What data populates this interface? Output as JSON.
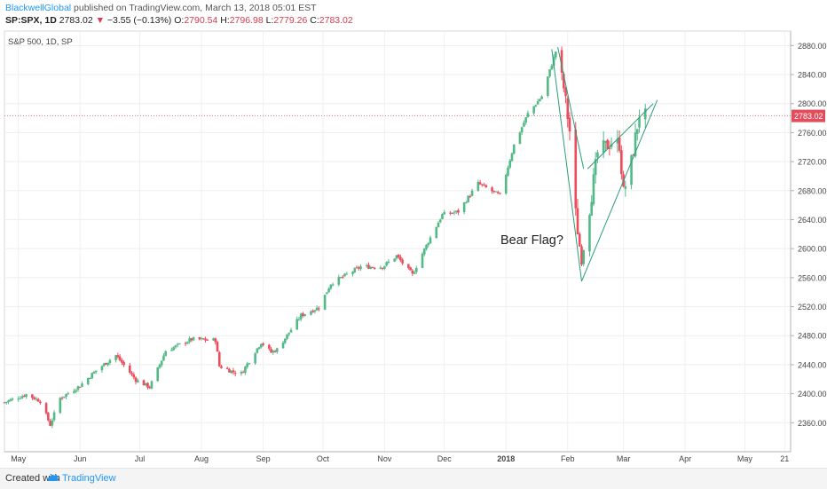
{
  "header": {
    "author": "BlackwellGlobal",
    "published": " published on TradingView.com, March 13, 2018 05:01 EST",
    "symbol": "SP:SPX, 1D",
    "last": "2783.02",
    "change_arrow": "▼",
    "change": "−3.55 (−0.13%)",
    "open_label": "O:",
    "open": "2790.54",
    "high_label": "H:",
    "high": "2796.98",
    "low_label": "L:",
    "low": "2779.26",
    "close_label": "C:",
    "close": "2783.02"
  },
  "chart_data": {
    "type": "candlestick",
    "title": "S&P 500, 1D, SP",
    "ylim": [
      2320,
      2900
    ],
    "y_ticks": [
      2360,
      2400,
      2440,
      2480,
      2520,
      2560,
      2600,
      2640,
      2680,
      2720,
      2760,
      2800,
      2840,
      2880
    ],
    "y_tick_labels": [
      "2360.00",
      "2400.00",
      "2440.00",
      "2480.00",
      "2520.00",
      "2560.00",
      "2600.00",
      "2640.00",
      "2680.00",
      "2720.00",
      "2760.00",
      "2800.00",
      "2840.00",
      "2880.00"
    ],
    "x_tick_labels": [
      "May",
      "Jun",
      "Jul",
      "Aug",
      "Sep",
      "Oct",
      "Nov",
      "Dec",
      "2018",
      "Feb",
      "Mar",
      "Apr",
      "May",
      "21"
    ],
    "x_tick_dates": [
      "2017-05-01",
      "2017-06-01",
      "2017-07-01",
      "2017-08-01",
      "2017-09-01",
      "2017-10-01",
      "2017-11-01",
      "2017-12-01",
      "2018-01-01",
      "2018-02-01",
      "2018-03-01",
      "2018-04-01",
      "2018-05-01",
      "2018-05-21"
    ],
    "x_start": "2017-04-24",
    "x_end": "2018-05-24",
    "last_price": 2783.02,
    "last_price_label": "2783.02",
    "up_color": "#53b987",
    "down_color": "#eb4d5c",
    "annotation": "Bear Flag?",
    "close_path": [
      [
        "2017-04-24",
        2388
      ],
      [
        "2017-05-05",
        2399
      ],
      [
        "2017-05-12",
        2390
      ],
      [
        "2017-05-17",
        2357
      ],
      [
        "2017-05-22",
        2394
      ],
      [
        "2017-06-01",
        2411
      ],
      [
        "2017-06-09",
        2432
      ],
      [
        "2017-06-19",
        2453
      ],
      [
        "2017-06-29",
        2419
      ],
      [
        "2017-07-06",
        2409
      ],
      [
        "2017-07-14",
        2459
      ],
      [
        "2017-07-27",
        2475
      ],
      [
        "2017-08-08",
        2474
      ],
      [
        "2017-08-10",
        2438
      ],
      [
        "2017-08-17",
        2430
      ],
      [
        "2017-08-21",
        2428
      ],
      [
        "2017-08-31",
        2471
      ],
      [
        "2017-09-05",
        2457
      ],
      [
        "2017-09-08",
        2461
      ],
      [
        "2017-09-20",
        2508
      ],
      [
        "2017-09-29",
        2519
      ],
      [
        "2017-10-05",
        2552
      ],
      [
        "2017-10-20",
        2575
      ],
      [
        "2017-10-31",
        2575
      ],
      [
        "2017-11-07",
        2590
      ],
      [
        "2017-11-15",
        2564
      ],
      [
        "2017-11-21",
        2599
      ],
      [
        "2017-11-30",
        2647
      ],
      [
        "2017-12-08",
        2651
      ],
      [
        "2017-12-18",
        2690
      ],
      [
        "2017-12-29",
        2673
      ],
      [
        "2018-01-05",
        2743
      ],
      [
        "2018-01-12",
        2786
      ],
      [
        "2018-01-19",
        2810
      ],
      [
        "2018-01-26",
        2872
      ],
      [
        "2018-01-30",
        2822
      ],
      [
        "2018-02-02",
        2762
      ],
      [
        "2018-02-05",
        2648
      ],
      [
        "2018-02-08",
        2581
      ],
      [
        "2018-02-12",
        2656
      ],
      [
        "2018-02-16",
        2732
      ],
      [
        "2018-02-23",
        2747
      ],
      [
        "2018-02-27",
        2744
      ],
      [
        "2018-03-01",
        2677
      ],
      [
        "2018-03-05",
        2720
      ],
      [
        "2018-03-09",
        2786
      ],
      [
        "2018-03-12",
        2783
      ]
    ],
    "trendlines": [
      [
        [
          "2018-01-24",
          2875
        ],
        [
          "2018-02-08",
          2555
        ]
      ],
      [
        [
          "2018-01-27",
          2878
        ],
        [
          "2018-02-09",
          2710
        ]
      ],
      [
        [
          "2018-02-08",
          2555
        ],
        [
          "2018-03-18",
          2805
        ]
      ],
      [
        [
          "2018-02-11",
          2710
        ],
        [
          "2018-03-16",
          2800
        ]
      ]
    ]
  },
  "footer": {
    "created_with": "Created with",
    "brand": "TradingView"
  }
}
